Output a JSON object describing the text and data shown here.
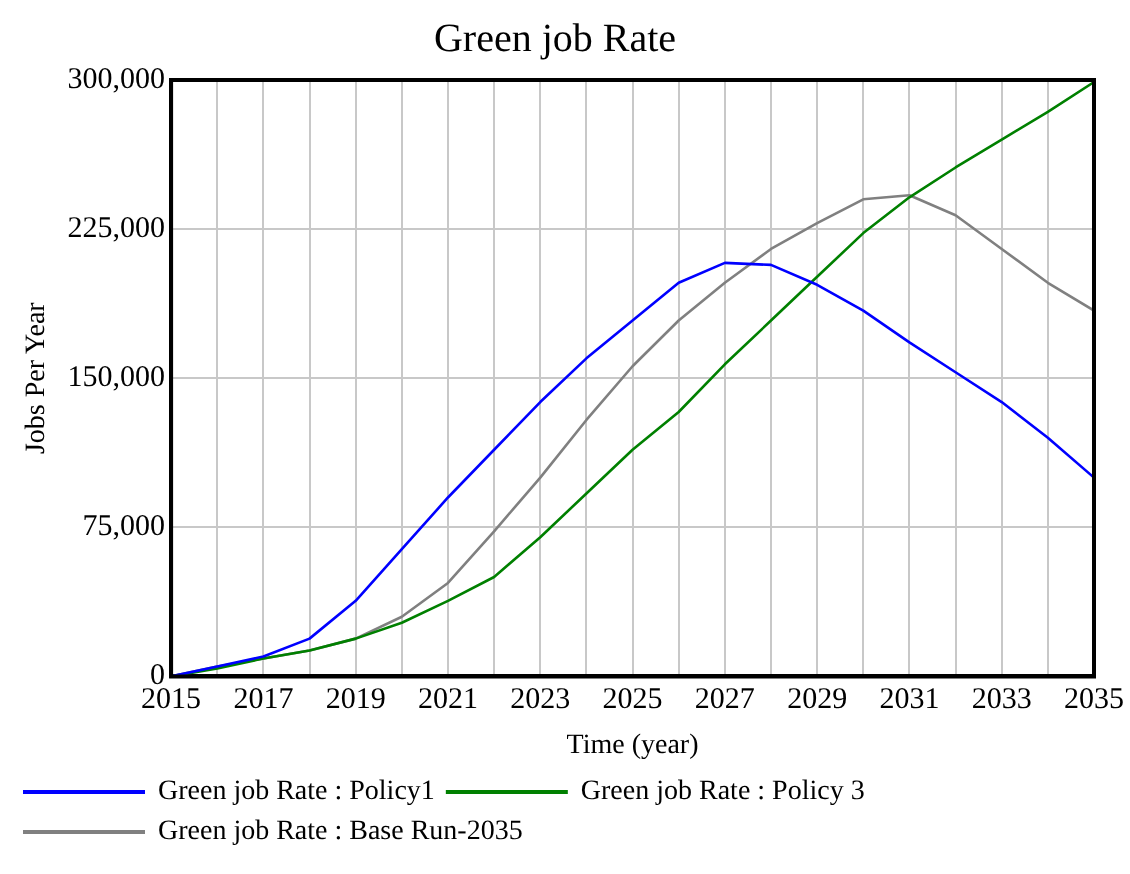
{
  "chart_data": {
    "type": "line",
    "title": "Green job Rate",
    "xlabel": "Time (year)",
    "ylabel": "Jobs Per Year",
    "x": [
      2015,
      2016,
      2017,
      2018,
      2019,
      2020,
      2021,
      2022,
      2023,
      2024,
      2025,
      2026,
      2027,
      2028,
      2029,
      2030,
      2031,
      2032,
      2033,
      2034,
      2035
    ],
    "series": [
      {
        "name": "Green job Rate : Policy1",
        "color": "#0000ff",
        "values": [
          0,
          5000,
          10000,
          19000,
          38000,
          64000,
          90000,
          114000,
          138000,
          160000,
          179000,
          198000,
          208000,
          207000,
          197000,
          184000,
          168000,
          153000,
          138000,
          120000,
          100000
        ]
      },
      {
        "name": "Green job Rate : Policy 3",
        "color": "#008000",
        "values": [
          0,
          4000,
          9000,
          13000,
          19000,
          27000,
          38000,
          50000,
          70000,
          92000,
          114000,
          133000,
          157000,
          179000,
          201000,
          223000,
          241000,
          256000,
          270000,
          284000,
          299000
        ]
      },
      {
        "name": "Green job Rate : Base Run-2035",
        "color": "#808080",
        "values": [
          0,
          5000,
          9000,
          13000,
          19000,
          30000,
          47000,
          73000,
          100000,
          129000,
          156000,
          179000,
          198000,
          215000,
          228000,
          240000,
          242000,
          232000,
          215000,
          198000,
          184000
        ]
      }
    ],
    "xlim": [
      2015,
      2035
    ],
    "xticks": [
      2015,
      {
        "value": 2016,
        "label": null
      },
      2017,
      {
        "value": 2018,
        "label": null
      },
      2019,
      {
        "value": 2020,
        "label": null
      },
      2021,
      {
        "value": 2022,
        "label": null
      },
      2023,
      {
        "value": 2024,
        "label": null
      },
      2025,
      {
        "value": 2026,
        "label": null
      },
      2027,
      {
        "value": 2028,
        "label": null
      },
      2029,
      {
        "value": 2030,
        "label": null
      },
      2031,
      {
        "value": 2032,
        "label": null
      },
      2033,
      {
        "value": 2034,
        "label": null
      },
      2035
    ],
    "ylim": [
      0,
      300000
    ],
    "yticks": [
      0,
      {
        "value": 75000,
        "label": "75,000"
      },
      {
        "value": 150000,
        "label": "150,000"
      },
      {
        "value": 225000,
        "label": "225,000"
      },
      {
        "value": 300000,
        "label": "300,000"
      }
    ],
    "grid": true,
    "legend": "bottom"
  }
}
